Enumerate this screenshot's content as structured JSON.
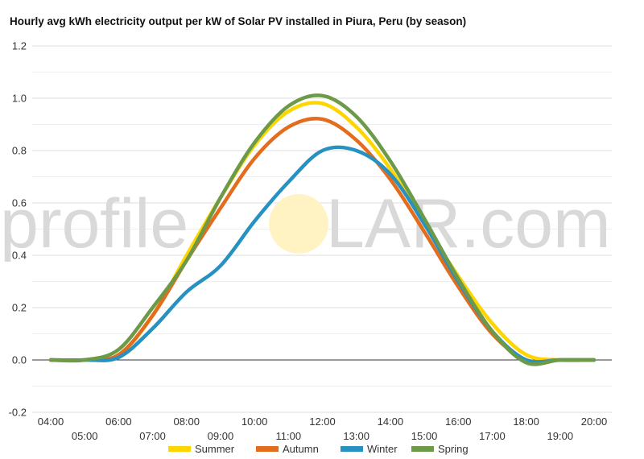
{
  "chart_data": {
    "type": "line",
    "title": "Hourly avg kWh electricity output per kW of Solar PV installed in Piura, Peru (by season)",
    "xlabel": "",
    "ylabel": "",
    "x": [
      "04:00",
      "05:00",
      "06:00",
      "07:00",
      "08:00",
      "09:00",
      "10:00",
      "11:00",
      "12:00",
      "13:00",
      "14:00",
      "15:00",
      "16:00",
      "17:00",
      "18:00",
      "19:00",
      "20:00"
    ],
    "ylim": [
      -0.2,
      1.2
    ],
    "yticks": [
      "-0.2",
      "0.0",
      "0.2",
      "0.4",
      "0.6",
      "0.8",
      "1.0",
      "1.2"
    ],
    "grid": true,
    "legend": "bottom",
    "series": [
      {
        "name": "Summer",
        "color": "#ffd500",
        "values": [
          0,
          0,
          0.02,
          0.17,
          0.4,
          0.62,
          0.82,
          0.95,
          0.98,
          0.89,
          0.73,
          0.52,
          0.32,
          0.14,
          0.02,
          0,
          0
        ]
      },
      {
        "name": "Autumn",
        "color": "#e36c1d",
        "values": [
          0,
          0,
          0.02,
          0.17,
          0.38,
          0.58,
          0.77,
          0.89,
          0.92,
          0.84,
          0.69,
          0.49,
          0.28,
          0.1,
          0,
          0,
          0
        ]
      },
      {
        "name": "Winter",
        "color": "#2791c1",
        "values": [
          0,
          0,
          0.01,
          0.12,
          0.26,
          0.36,
          0.53,
          0.68,
          0.8,
          0.8,
          0.71,
          0.52,
          0.3,
          0.11,
          0.0,
          0,
          0
        ]
      },
      {
        "name": "Spring",
        "color": "#6c9a48",
        "values": [
          0,
          0,
          0.04,
          0.2,
          0.38,
          0.62,
          0.83,
          0.97,
          1.01,
          0.93,
          0.76,
          0.54,
          0.31,
          0.11,
          -0.01,
          0,
          0
        ]
      }
    ]
  },
  "watermark": {
    "left": "profile",
    "right": "LAR.com",
    "sun_color": "#fff3c4"
  }
}
